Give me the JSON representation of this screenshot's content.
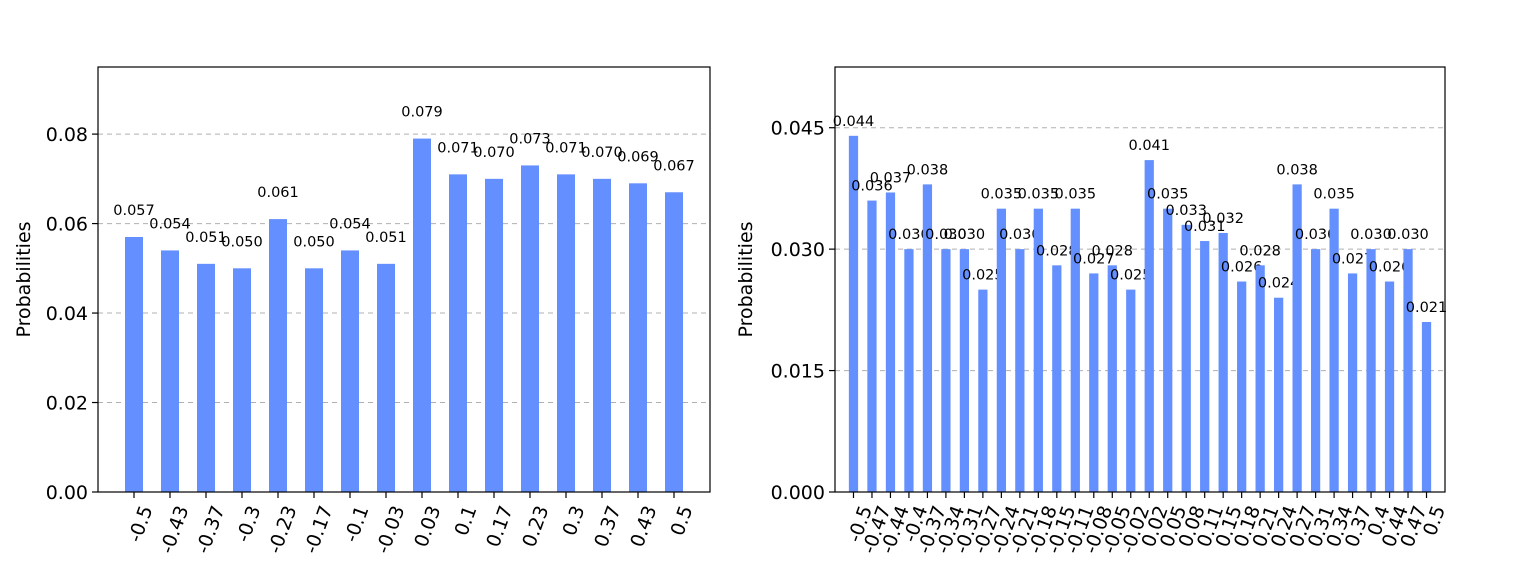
{
  "colors": {
    "bar": "#648fff",
    "grid": "#b0b0b0"
  },
  "chart_data": [
    {
      "type": "bar",
      "ylabel": "Probabilities",
      "xlabel": "",
      "ylim": [
        0,
        0.095
      ],
      "yticks": [
        0.0,
        0.02,
        0.04,
        0.06,
        0.08
      ],
      "ytick_labels": [
        "0.00",
        "0.02",
        "0.04",
        "0.06",
        "0.08"
      ],
      "grid": "y-dashed",
      "categories": [
        "-0.5",
        "-0.43",
        "-0.37",
        "-0.3",
        "-0.23",
        "-0.17",
        "-0.1",
        "-0.03",
        "0.03",
        "0.1",
        "0.17",
        "0.23",
        "0.3",
        "0.37",
        "0.43",
        "0.5"
      ],
      "values": [
        0.057,
        0.054,
        0.051,
        0.05,
        0.061,
        0.05,
        0.054,
        0.051,
        0.079,
        0.071,
        0.07,
        0.073,
        0.071,
        0.07,
        0.069,
        0.067
      ],
      "value_labels": [
        "0.057",
        "0.054",
        "0.051",
        "0.050",
        "0.061",
        "0.050",
        "0.054",
        "0.051",
        "0.079",
        "0.071",
        "0.070",
        "0.073",
        "0.071",
        "0.070",
        "0.069",
        "0.067"
      ]
    },
    {
      "type": "bar",
      "ylabel": "Probabilities",
      "xlabel": "",
      "ylim": [
        0,
        0.0525
      ],
      "yticks": [
        0.0,
        0.015,
        0.03,
        0.045
      ],
      "ytick_labels": [
        "0.000",
        "0.015",
        "0.030",
        "0.045"
      ],
      "grid": "y-dashed",
      "categories": [
        "-0.5",
        "-0.47",
        "-0.44",
        "-0.4",
        "-0.37",
        "-0.34",
        "-0.31",
        "-0.27",
        "-0.24",
        "-0.21",
        "-0.18",
        "-0.15",
        "-0.11",
        "-0.08",
        "-0.05",
        "-0.02",
        "0.02",
        "0.05",
        "0.08",
        "0.11",
        "0.15",
        "0.18",
        "0.21",
        "0.24",
        "0.27",
        "0.31",
        "0.34",
        "0.37",
        "0.4",
        "0.44",
        "0.47",
        "0.5"
      ],
      "values": [
        0.044,
        0.036,
        0.037,
        0.03,
        0.038,
        0.03,
        0.03,
        0.025,
        0.035,
        0.03,
        0.035,
        0.028,
        0.035,
        0.027,
        0.028,
        0.025,
        0.041,
        0.035,
        0.033,
        0.031,
        0.032,
        0.026,
        0.028,
        0.024,
        0.038,
        0.03,
        0.035,
        0.027,
        0.03,
        0.026,
        0.03,
        0.021
      ],
      "value_labels": [
        "0.044",
        "0.036",
        "0.037",
        "0.030",
        "0.038",
        "0.030",
        "0.030",
        "0.025",
        "0.035",
        "0.030",
        "0.035",
        "0.028",
        "0.035",
        "0.027",
        "0.028",
        "0.025",
        "0.041",
        "0.035",
        "0.033",
        "0.031",
        "0.032",
        "0.026",
        "0.028",
        "0.024",
        "0.038",
        "0.030",
        "0.035",
        "0.027",
        "0.030",
        "0.026",
        "0.030",
        "0.021"
      ]
    }
  ]
}
